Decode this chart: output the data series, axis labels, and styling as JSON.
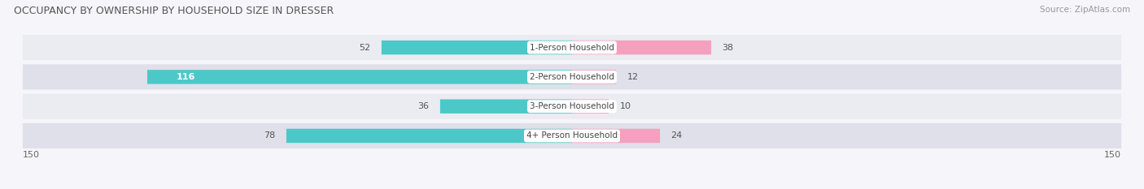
{
  "title": "OCCUPANCY BY OWNERSHIP BY HOUSEHOLD SIZE IN DRESSER",
  "source": "Source: ZipAtlas.com",
  "categories": [
    "1-Person Household",
    "2-Person Household",
    "3-Person Household",
    "4+ Person Household"
  ],
  "owner_values": [
    52,
    116,
    36,
    78
  ],
  "renter_values": [
    38,
    12,
    10,
    24
  ],
  "owner_color": "#4DC8C8",
  "renter_color": "#F5A0BE",
  "row_bg_light": "#EBEBF2",
  "row_bg_dark": "#E0E0EA",
  "axis_max": 150,
  "title_fontsize": 9,
  "source_fontsize": 7.5,
  "bar_fontsize": 8,
  "cat_fontsize": 7.5,
  "fig_bg": "#F5F5FA"
}
